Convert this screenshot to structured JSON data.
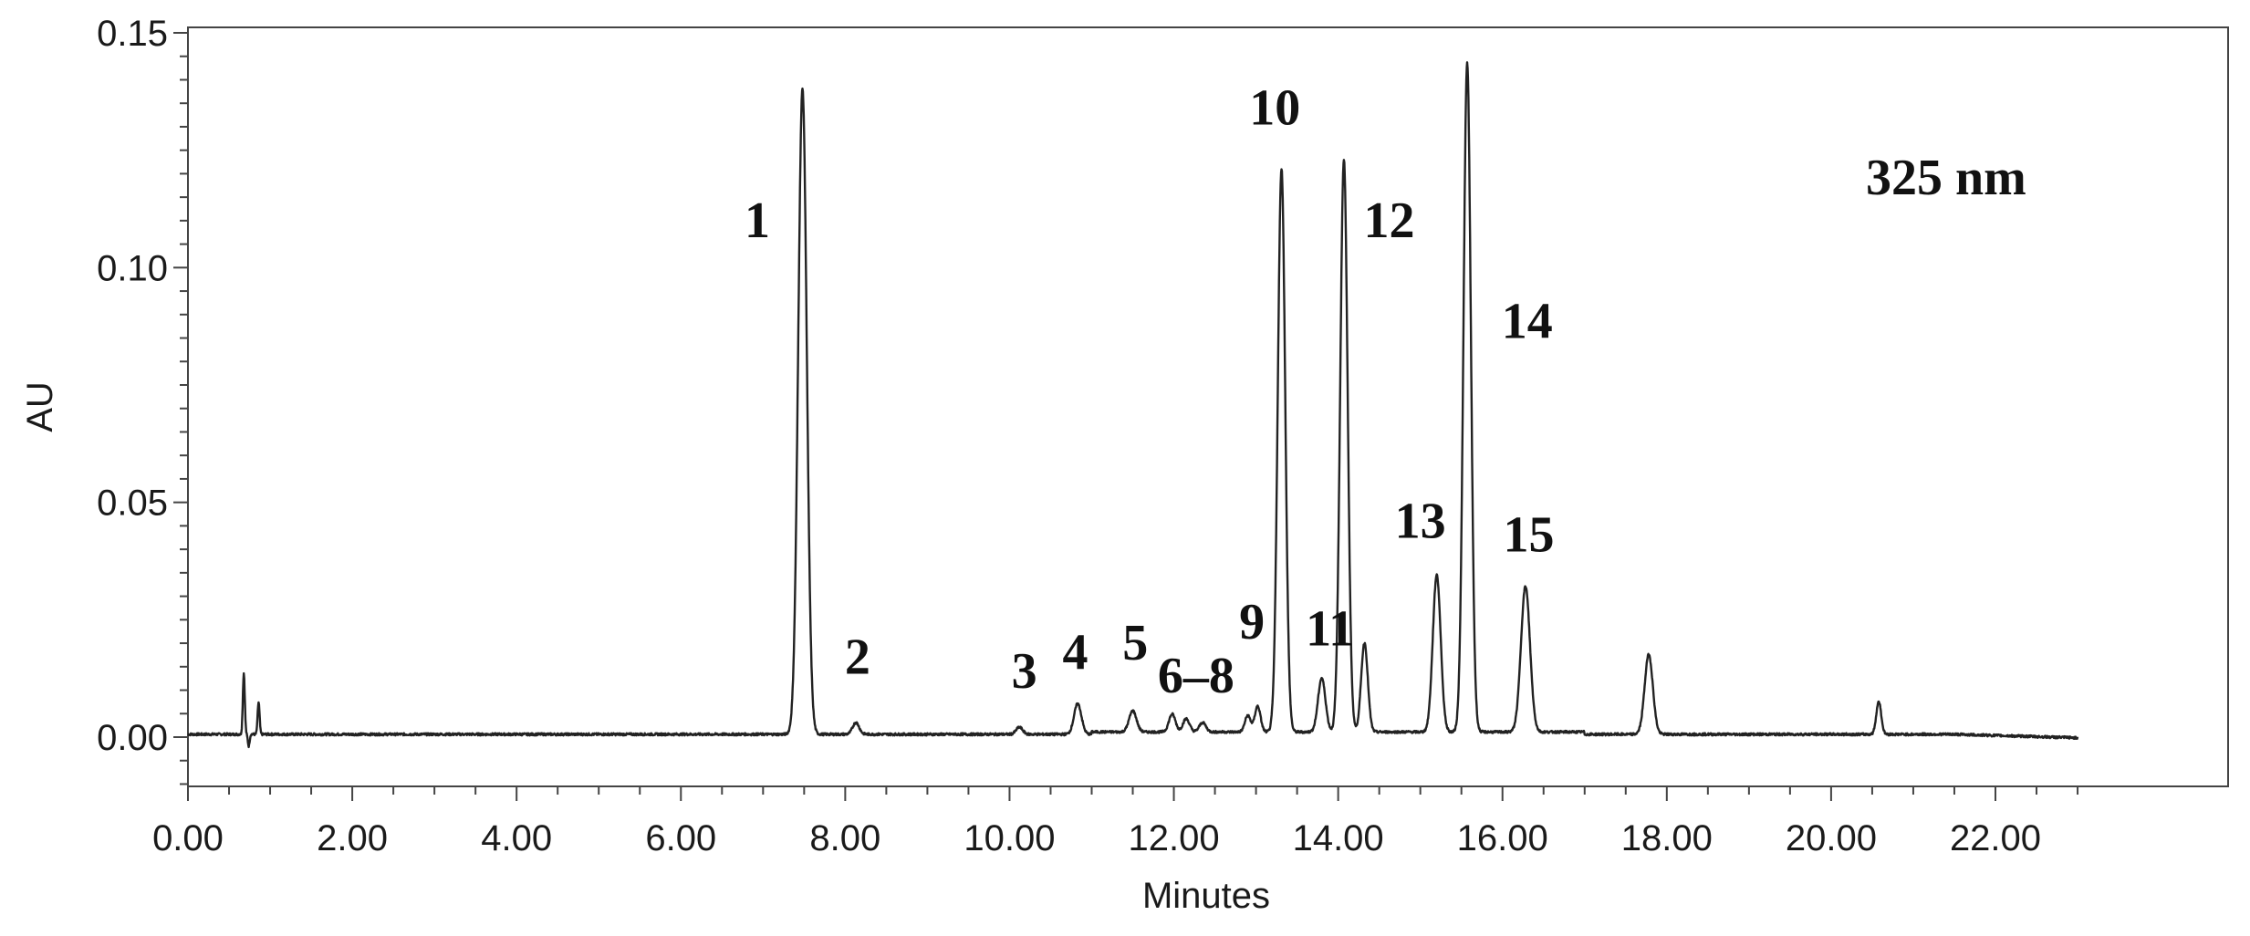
{
  "chart_data": {
    "type": "line",
    "xlabel": "Minutes",
    "ylabel": "AU",
    "xlim": [
      0,
      23
    ],
    "ylim": [
      -0.01,
      0.15
    ],
    "xticks": [
      "0.00",
      "2.00",
      "4.00",
      "6.00",
      "8.00",
      "10.00",
      "12.00",
      "14.00",
      "16.00",
      "18.00",
      "20.00",
      "22.00"
    ],
    "yticks": [
      "0.00",
      "0.05",
      "0.10",
      "0.15"
    ],
    "annotation": "325 nm",
    "grid": false,
    "line_color": "#222222",
    "baseline": 0.0006,
    "peaks": [
      {
        "t": 0.68,
        "h": 0.013,
        "w": 0.012
      },
      {
        "t": 0.86,
        "h": 0.0068,
        "w": 0.012
      },
      {
        "t": 7.48,
        "h": 0.1375,
        "w": 0.052
      },
      {
        "t": 8.13,
        "h": 0.0025,
        "w": 0.04
      },
      {
        "t": 10.12,
        "h": 0.0015,
        "w": 0.04
      },
      {
        "t": 10.83,
        "h": 0.0065,
        "w": 0.045
      },
      {
        "t": 11.5,
        "h": 0.0045,
        "w": 0.045
      },
      {
        "t": 11.98,
        "h": 0.0038,
        "w": 0.04
      },
      {
        "t": 12.15,
        "h": 0.0028,
        "w": 0.04
      },
      {
        "t": 12.35,
        "h": 0.002,
        "w": 0.04
      },
      {
        "t": 12.9,
        "h": 0.0035,
        "w": 0.035
      },
      {
        "t": 13.02,
        "h": 0.0055,
        "w": 0.035
      },
      {
        "t": 13.31,
        "h": 0.12,
        "w": 0.045
      },
      {
        "t": 13.8,
        "h": 0.0115,
        "w": 0.045
      },
      {
        "t": 14.07,
        "h": 0.122,
        "w": 0.045
      },
      {
        "t": 14.32,
        "h": 0.019,
        "w": 0.04
      },
      {
        "t": 15.2,
        "h": 0.0335,
        "w": 0.048
      },
      {
        "t": 15.57,
        "h": 0.1425,
        "w": 0.045
      },
      {
        "t": 16.28,
        "h": 0.031,
        "w": 0.055
      },
      {
        "t": 17.78,
        "h": 0.017,
        "w": 0.05
      },
      {
        "t": 20.58,
        "h": 0.007,
        "w": 0.03
      }
    ],
    "peak_labels": [
      {
        "text": "1",
        "t": 6.93,
        "au": 0.1065
      },
      {
        "text": "2",
        "t": 8.15,
        "au": 0.0135
      },
      {
        "text": "3",
        "t": 10.18,
        "au": 0.0105
      },
      {
        "text": "4",
        "t": 10.8,
        "au": 0.0145
      },
      {
        "text": "5",
        "t": 11.53,
        "au": 0.0165
      },
      {
        "text": "6–8",
        "t": 12.27,
        "au": 0.0095
      },
      {
        "text": "9",
        "t": 12.95,
        "au": 0.021
      },
      {
        "text": "10",
        "t": 13.23,
        "au": 0.1305
      },
      {
        "text": "11",
        "t": 13.9,
        "au": 0.0195
      },
      {
        "text": "12",
        "t": 14.62,
        "au": 0.1065
      },
      {
        "text": "13",
        "t": 15.0,
        "au": 0.0425
      },
      {
        "text": "14",
        "t": 16.3,
        "au": 0.085
      },
      {
        "text": "15",
        "t": 16.32,
        "au": 0.0395
      }
    ]
  }
}
